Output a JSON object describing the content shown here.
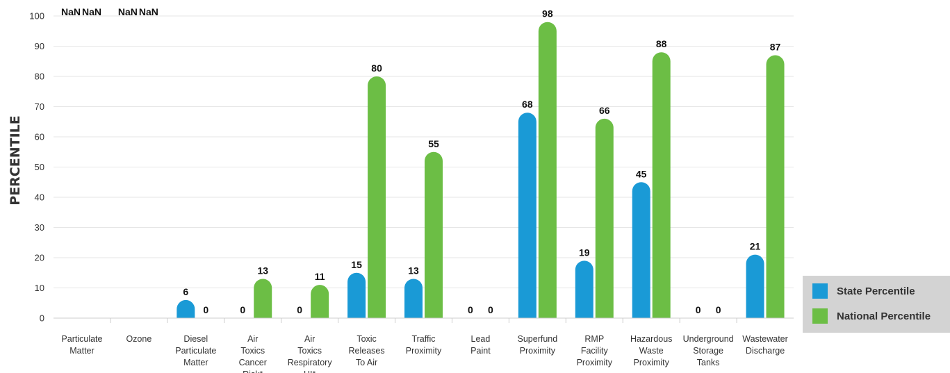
{
  "chart_data": {
    "type": "bar",
    "ylabel": "PERCENTILE",
    "ylim": [
      0,
      100
    ],
    "yticks": [
      "0",
      "10",
      "20",
      "30",
      "40",
      "50",
      "60",
      "70",
      "80",
      "90",
      "100"
    ],
    "grid": true,
    "legend_position": "bottom-right",
    "categories": [
      [
        "Particulate",
        "Matter"
      ],
      [
        "Ozone"
      ],
      [
        "Diesel",
        "Particulate",
        "Matter"
      ],
      [
        "Air",
        "Toxics",
        "Cancer",
        "Risk*"
      ],
      [
        "Air",
        "Toxics",
        "Respiratory",
        "HI*"
      ],
      [
        "Toxic",
        "Releases",
        "To Air"
      ],
      [
        "Traffic",
        "Proximity"
      ],
      [
        "Lead",
        "Paint"
      ],
      [
        "Superfund",
        "Proximity"
      ],
      [
        "RMP",
        "Facility",
        "Proximity"
      ],
      [
        "Hazardous",
        "Waste",
        "Proximity"
      ],
      [
        "Underground",
        "Storage",
        "Tanks"
      ],
      [
        "Wastewater",
        "Discharge"
      ]
    ],
    "series": [
      {
        "name": "State Percentile",
        "color": "#1a9ad6",
        "values": [
          null,
          null,
          6,
          0,
          0,
          15,
          13,
          0,
          68,
          19,
          45,
          0,
          21
        ],
        "labels": [
          "NaN",
          "NaN",
          "6",
          "0",
          "0",
          "15",
          "13",
          "0",
          "68",
          "19",
          "45",
          "0",
          "21"
        ]
      },
      {
        "name": "National Percentile",
        "color": "#6cbe45",
        "values": [
          null,
          null,
          0,
          13,
          11,
          80,
          55,
          0,
          98,
          66,
          88,
          0,
          87
        ],
        "labels": [
          "NaN",
          "NaN",
          "0",
          "13",
          "11",
          "80",
          "55",
          "0",
          "98",
          "66",
          "88",
          "0",
          "87"
        ]
      }
    ]
  },
  "legend": {
    "items": [
      {
        "label": "State Percentile",
        "color": "#1a9ad6"
      },
      {
        "label": "National Percentile",
        "color": "#6cbe45"
      }
    ]
  }
}
